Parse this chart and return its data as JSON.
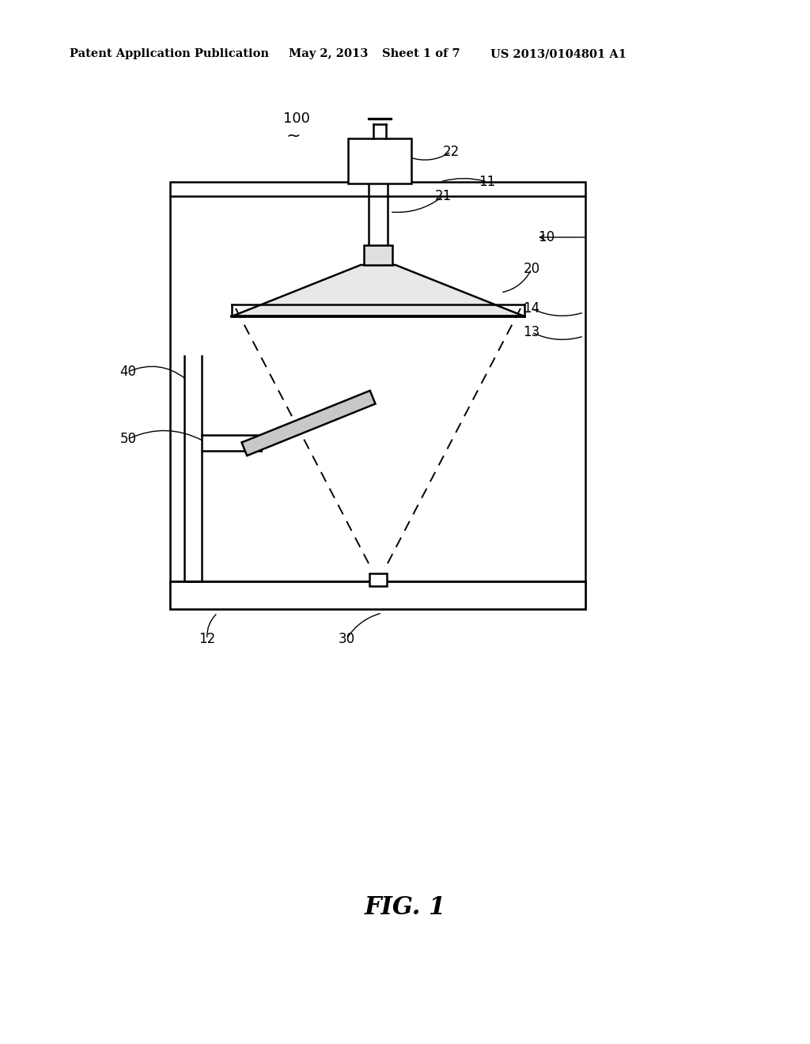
{
  "bg_color": "#ffffff",
  "line_color": "#000000",
  "header_text": "Patent Application Publication",
  "header_date": "May 2, 2013",
  "header_sheet": "Sheet 1 of 7",
  "header_patent": "US 2013/0104801 A1",
  "fig_label": "FIG. 1",
  "ref_100": "100",
  "ref_10": "10",
  "ref_11": "11",
  "ref_12": "12",
  "ref_13": "13",
  "ref_14": "14",
  "ref_20": "20",
  "ref_21": "21",
  "ref_22": "22",
  "ref_30": "30",
  "ref_40": "40",
  "ref_50": "50"
}
